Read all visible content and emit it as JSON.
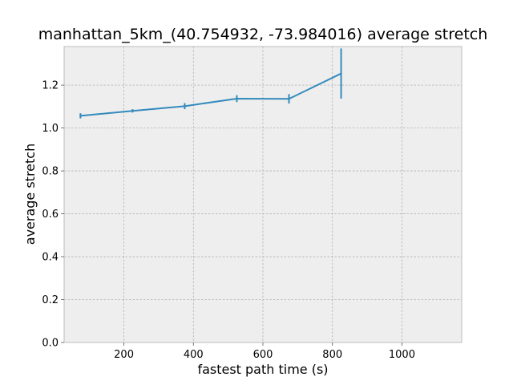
{
  "chart_data": {
    "type": "line",
    "title": "manhattan_5km_(40.754932, -73.984016) average stretch",
    "xlabel": "fastest path time (s)",
    "ylabel": "average stretch",
    "xlim": [
      28,
      1172
    ],
    "ylim": [
      0,
      1.38
    ],
    "xticks": [
      200,
      400,
      600,
      800,
      1000
    ],
    "yticks": [
      0.0,
      0.2,
      0.4,
      0.6,
      0.8,
      1.0,
      1.2
    ],
    "xtick_labels": [
      "200",
      "400",
      "600",
      "800",
      "1000"
    ],
    "ytick_labels": [
      "0.0",
      "0.2",
      "0.4",
      "0.6",
      "0.8",
      "1.0",
      "1.2"
    ],
    "grid": true,
    "series": [
      {
        "x": [
          75,
          225,
          375,
          525,
          675,
          825
        ],
        "y": [
          1.057,
          1.08,
          1.102,
          1.137,
          1.136,
          1.254
        ],
        "yerr": [
          0.012,
          0.008,
          0.014,
          0.016,
          0.022,
          0.117
        ],
        "color": "#348abd"
      }
    ],
    "colors": {
      "plot_background": "#eeeeee",
      "grid": "#b2b2b2",
      "frame": "#bcbcbc"
    }
  }
}
